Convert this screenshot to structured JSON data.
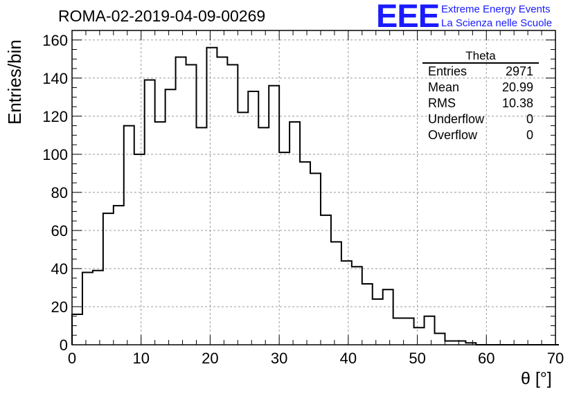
{
  "title": "ROMA-02-2019-04-09-00269",
  "logo": {
    "mark": "EEE",
    "line1": "Extreme Energy Events",
    "line2": "La Scienza nelle Scuole",
    "color": "#1a1aff"
  },
  "stats": {
    "name": "Theta",
    "rows": [
      {
        "label": "Entries",
        "value": "2971"
      },
      {
        "label": "Mean",
        "value": "20.99"
      },
      {
        "label": "RMS",
        "value": "10.38"
      },
      {
        "label": "Underflow",
        "value": "0"
      },
      {
        "label": "Overflow",
        "value": "0"
      }
    ]
  },
  "chart_data": {
    "type": "histogram",
    "xlabel": "θ [°]",
    "ylabel": "Entries/bin",
    "xlim": [
      0,
      70
    ],
    "ylim": [
      0,
      165
    ],
    "xticks": [
      0,
      10,
      20,
      30,
      40,
      50,
      60,
      70
    ],
    "yticks": [
      0,
      20,
      40,
      60,
      80,
      100,
      120,
      140,
      160
    ],
    "grid": true,
    "bin_width": 1.5,
    "bin_start": 0,
    "values": [
      16,
      38,
      39,
      69,
      73,
      115,
      100,
      139,
      117,
      134,
      151,
      147,
      114,
      156,
      151,
      147,
      122,
      133,
      114,
      136,
      101,
      117,
      96,
      90,
      68,
      54,
      44,
      41,
      32,
      24,
      29,
      14,
      14,
      9,
      15,
      6,
      2,
      2,
      1,
      0,
      0,
      0,
      0,
      0,
      0,
      0,
      0
    ]
  }
}
